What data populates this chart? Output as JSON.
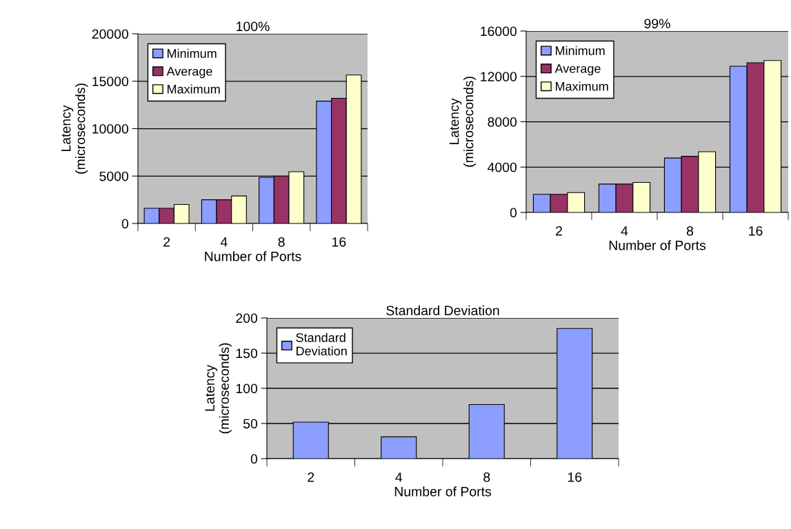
{
  "chart_data": [
    {
      "type": "bar",
      "title": "100%",
      "xlabel": "Number of Ports",
      "ylabel": "Latency\n(microseconds)",
      "categories": [
        "2",
        "4",
        "8",
        "16"
      ],
      "series": [
        {
          "name": "Minimum",
          "color": "#8c9eff",
          "values": [
            1600,
            2500,
            4850,
            12900
          ]
        },
        {
          "name": "Average",
          "color": "#993366",
          "values": [
            1600,
            2500,
            5000,
            13200
          ]
        },
        {
          "name": "Maximum",
          "color": "#ffffcc",
          "values": [
            2000,
            2900,
            5450,
            15650
          ]
        }
      ],
      "ylim": [
        0,
        20000
      ],
      "yticks": [
        0,
        5000,
        10000,
        15000,
        20000
      ],
      "grid": "y",
      "legend": "top left"
    },
    {
      "type": "bar",
      "title": "99%",
      "xlabel": "Number of Ports",
      "ylabel": "Latency\n(microseconds)",
      "categories": [
        "2",
        "4",
        "8",
        "16"
      ],
      "series": [
        {
          "name": "Minimum",
          "color": "#8c9eff",
          "values": [
            1600,
            2500,
            4800,
            12900
          ]
        },
        {
          "name": "Average",
          "color": "#993366",
          "values": [
            1600,
            2500,
            4950,
            13200
          ]
        },
        {
          "name": "Maximum",
          "color": "#ffffcc",
          "values": [
            1750,
            2650,
            5350,
            13400
          ]
        }
      ],
      "ylim": [
        0,
        16000
      ],
      "yticks": [
        0,
        4000,
        8000,
        12000,
        16000
      ],
      "grid": "y",
      "legend": "top left"
    },
    {
      "type": "bar",
      "title": "Standard Deviation",
      "xlabel": "Number of Ports",
      "ylabel": "Latency\n(microseconds)",
      "categories": [
        "2",
        "4",
        "8",
        "16"
      ],
      "series": [
        {
          "name": "Standard\nDeviation",
          "color": "#8c9eff",
          "values": [
            52,
            31,
            77,
            185
          ]
        }
      ],
      "ylim": [
        0,
        200
      ],
      "yticks": [
        0,
        50,
        100,
        150,
        200
      ],
      "grid": "y",
      "legend": "top left"
    }
  ]
}
